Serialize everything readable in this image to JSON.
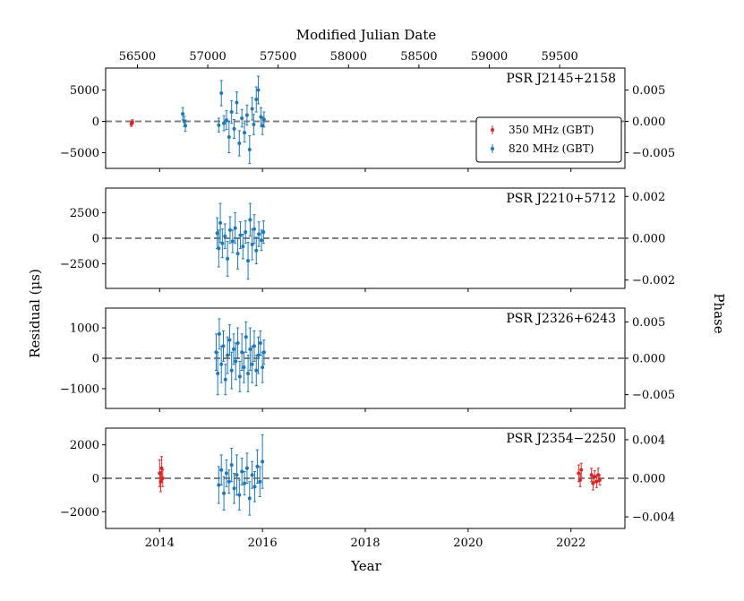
{
  "chart_data": {
    "type": "scatter",
    "top_axis_label": "Modified Julian Date",
    "top_axis_ticks": [
      56500,
      57000,
      57500,
      58000,
      58500,
      59000,
      59500
    ],
    "xlabel": "Year",
    "x_ticks": [
      2014,
      2016,
      2018,
      2020,
      2022
    ],
    "xlim": [
      2012.95,
      2023.05
    ],
    "ylabel_left": "Residual (μs)",
    "ylabel_right": "Phase",
    "reference_line": 0,
    "legend": {
      "position": "right",
      "entries": [
        {
          "label": "350 MHz (GBT)",
          "color": "#d62728"
        },
        {
          "label": "820 MHz (GBT)",
          "color": "#1f77b4"
        }
      ]
    },
    "panels": [
      {
        "name": "PSR J2145+2158",
        "ylim": [
          -7500,
          8500
        ],
        "y_ticks": [
          -5000,
          0,
          5000
        ],
        "y_tick_labels": [
          "−5000",
          "0",
          "5000"
        ],
        "phase_ticks": [
          -0.005,
          0,
          0.005
        ],
        "phase_tick_labels": [
          "−0.005",
          "0.000",
          "0.005"
        ],
        "phase_ylim": [
          -0.0075,
          0.0085
        ],
        "show_legend": true,
        "series": [
          {
            "name": "350 MHz (GBT)",
            "color": "#d62728",
            "points": [
              {
                "x": 2013.45,
                "y": -400,
                "err": 400
              },
              {
                "x": 2013.47,
                "y": -100,
                "err": 350
              }
            ]
          },
          {
            "name": "820 MHz (GBT)",
            "color": "#1f77b4",
            "points": [
              {
                "x": 2014.45,
                "y": 1200,
                "err": 1000
              },
              {
                "x": 2014.48,
                "y": 0,
                "err": 800
              },
              {
                "x": 2014.5,
                "y": -700,
                "err": 900
              },
              {
                "x": 2015.15,
                "y": -600,
                "err": 1100
              },
              {
                "x": 2015.2,
                "y": 4500,
                "err": 2000
              },
              {
                "x": 2015.25,
                "y": -300,
                "err": 1200
              },
              {
                "x": 2015.3,
                "y": 200,
                "err": 1500
              },
              {
                "x": 2015.35,
                "y": -2500,
                "err": 2500
              },
              {
                "x": 2015.4,
                "y": 1500,
                "err": 1800
              },
              {
                "x": 2015.45,
                "y": -1200,
                "err": 1500
              },
              {
                "x": 2015.5,
                "y": 3000,
                "err": 1700
              },
              {
                "x": 2015.55,
                "y": -3500,
                "err": 2000
              },
              {
                "x": 2015.6,
                "y": 500,
                "err": 1400
              },
              {
                "x": 2015.65,
                "y": -1800,
                "err": 1500
              },
              {
                "x": 2015.7,
                "y": 1000,
                "err": 1600
              },
              {
                "x": 2015.75,
                "y": -4500,
                "err": 2200
              },
              {
                "x": 2015.8,
                "y": 2000,
                "err": 1800
              },
              {
                "x": 2015.83,
                "y": -500,
                "err": 1600
              },
              {
                "x": 2015.88,
                "y": 3500,
                "err": 2000
              },
              {
                "x": 2015.92,
                "y": 5000,
                "err": 2200
              },
              {
                "x": 2015.97,
                "y": 700,
                "err": 1500
              },
              {
                "x": 2016.0,
                "y": -700,
                "err": 1400
              },
              {
                "x": 2016.03,
                "y": 300,
                "err": 1200
              }
            ]
          }
        ]
      },
      {
        "name": "PSR J2210+5712",
        "ylim": [
          -4900,
          4900
        ],
        "y_ticks": [
          -2500,
          0,
          2500
        ],
        "y_tick_labels": [
          "−2500",
          "0",
          "2500"
        ],
        "phase_ticks": [
          -0.002,
          0,
          0.002
        ],
        "phase_tick_labels": [
          "−0.002",
          "0.000",
          "0.002"
        ],
        "phase_ylim": [
          -0.0024,
          0.0024
        ],
        "show_legend": false,
        "series": [
          {
            "name": "820 MHz (GBT)",
            "color": "#1f77b4",
            "points": [
              {
                "x": 2015.12,
                "y": 500,
                "err": 1500
              },
              {
                "x": 2015.15,
                "y": -1000,
                "err": 1800
              },
              {
                "x": 2015.18,
                "y": 1500,
                "err": 1900
              },
              {
                "x": 2015.22,
                "y": -500,
                "err": 1400
              },
              {
                "x": 2015.27,
                "y": 200,
                "err": 1200
              },
              {
                "x": 2015.32,
                "y": -2000,
                "err": 1700
              },
              {
                "x": 2015.37,
                "y": 800,
                "err": 1300
              },
              {
                "x": 2015.42,
                "y": -300,
                "err": 1100
              },
              {
                "x": 2015.47,
                "y": 1000,
                "err": 1500
              },
              {
                "x": 2015.52,
                "y": -1500,
                "err": 1500
              },
              {
                "x": 2015.57,
                "y": 300,
                "err": 1300
              },
              {
                "x": 2015.62,
                "y": -800,
                "err": 1200
              },
              {
                "x": 2015.67,
                "y": 600,
                "err": 1100
              },
              {
                "x": 2015.72,
                "y": -2200,
                "err": 1800
              },
              {
                "x": 2015.76,
                "y": 1800,
                "err": 1600
              },
              {
                "x": 2015.8,
                "y": -600,
                "err": 1500
              },
              {
                "x": 2015.84,
                "y": 900,
                "err": 1400
              },
              {
                "x": 2015.88,
                "y": -1200,
                "err": 1300
              },
              {
                "x": 2015.93,
                "y": 400,
                "err": 1200
              },
              {
                "x": 2015.98,
                "y": -200,
                "err": 1000
              },
              {
                "x": 2016.02,
                "y": 600,
                "err": 1100
              }
            ]
          }
        ]
      },
      {
        "name": "PSR J2326+6243",
        "ylim": [
          -1650,
          1650
        ],
        "y_ticks": [
          -1000,
          0,
          1000
        ],
        "y_tick_labels": [
          "−1000",
          "0",
          "1000"
        ],
        "phase_ticks": [
          -0.005,
          0,
          0.005
        ],
        "phase_tick_labels": [
          "−0.005",
          "0.000",
          "0.005"
        ],
        "phase_ylim": [
          -0.0069,
          0.0069
        ],
        "show_legend": false,
        "series": [
          {
            "name": "820 MHz (GBT)",
            "color": "#1f77b4",
            "points": [
              {
                "x": 2015.1,
                "y": 200,
                "err": 600
              },
              {
                "x": 2015.13,
                "y": -500,
                "err": 700
              },
              {
                "x": 2015.16,
                "y": 800,
                "err": 500
              },
              {
                "x": 2015.2,
                "y": -200,
                "err": 600
              },
              {
                "x": 2015.24,
                "y": 400,
                "err": 500
              },
              {
                "x": 2015.28,
                "y": -700,
                "err": 500
              },
              {
                "x": 2015.32,
                "y": 100,
                "err": 600
              },
              {
                "x": 2015.36,
                "y": 600,
                "err": 500
              },
              {
                "x": 2015.4,
                "y": -400,
                "err": 600
              },
              {
                "x": 2015.44,
                "y": 300,
                "err": 500
              },
              {
                "x": 2015.48,
                "y": -100,
                "err": 600
              },
              {
                "x": 2015.52,
                "y": 500,
                "err": 500
              },
              {
                "x": 2015.56,
                "y": -600,
                "err": 500
              },
              {
                "x": 2015.6,
                "y": 200,
                "err": 600
              },
              {
                "x": 2015.64,
                "y": -300,
                "err": 500
              },
              {
                "x": 2015.68,
                "y": 700,
                "err": 500
              },
              {
                "x": 2015.72,
                "y": -500,
                "err": 600
              },
              {
                "x": 2015.76,
                "y": 300,
                "err": 700
              },
              {
                "x": 2015.8,
                "y": -200,
                "err": 600
              },
              {
                "x": 2015.84,
                "y": 400,
                "err": 500
              },
              {
                "x": 2015.88,
                "y": -400,
                "err": 500
              },
              {
                "x": 2015.92,
                "y": 100,
                "err": 600
              },
              {
                "x": 2015.96,
                "y": 500,
                "err": 400
              },
              {
                "x": 2016.0,
                "y": -300,
                "err": 500
              },
              {
                "x": 2016.03,
                "y": 200,
                "err": 400
              }
            ]
          }
        ]
      },
      {
        "name": "PSR J2354−2250",
        "ylim": [
          -3000,
          3000
        ],
        "y_ticks": [
          -2000,
          0,
          2000
        ],
        "y_tick_labels": [
          "−2000",
          "0",
          "2000"
        ],
        "phase_ticks": [
          -0.004,
          0,
          0.004
        ],
        "phase_tick_labels": [
          "−0.004",
          "0.000",
          "0.004"
        ],
        "phase_ylim": [
          -0.0052,
          0.0052
        ],
        "show_legend": false,
        "series": [
          {
            "name": "350 MHz (GBT)",
            "color": "#d62728",
            "points": [
              {
                "x": 2014.0,
                "y": 300,
                "err": 800
              },
              {
                "x": 2014.02,
                "y": -200,
                "err": 600
              },
              {
                "x": 2014.04,
                "y": 600,
                "err": 700
              },
              {
                "x": 2014.06,
                "y": 0,
                "err": 500
              },
              {
                "x": 2022.15,
                "y": 300,
                "err": 500
              },
              {
                "x": 2022.18,
                "y": -100,
                "err": 400
              },
              {
                "x": 2022.2,
                "y": 500,
                "err": 400
              },
              {
                "x": 2022.4,
                "y": 200,
                "err": 400
              },
              {
                "x": 2022.43,
                "y": -300,
                "err": 400
              },
              {
                "x": 2022.46,
                "y": 100,
                "err": 350
              },
              {
                "x": 2022.5,
                "y": -200,
                "err": 350
              },
              {
                "x": 2022.53,
                "y": 200,
                "err": 400
              },
              {
                "x": 2022.56,
                "y": -100,
                "err": 300
              }
            ]
          },
          {
            "name": "820 MHz (GBT)",
            "color": "#1f77b4",
            "points": [
              {
                "x": 2015.15,
                "y": -400,
                "err": 1100
              },
              {
                "x": 2015.2,
                "y": 500,
                "err": 900
              },
              {
                "x": 2015.25,
                "y": -900,
                "err": 1000
              },
              {
                "x": 2015.3,
                "y": 300,
                "err": 800
              },
              {
                "x": 2015.35,
                "y": -200,
                "err": 700
              },
              {
                "x": 2015.4,
                "y": 800,
                "err": 1000
              },
              {
                "x": 2015.45,
                "y": -600,
                "err": 900
              },
              {
                "x": 2015.5,
                "y": 200,
                "err": 1200
              },
              {
                "x": 2015.55,
                "y": -1000,
                "err": 900
              },
              {
                "x": 2015.6,
                "y": 400,
                "err": 800
              },
              {
                "x": 2015.65,
                "y": -300,
                "err": 700
              },
              {
                "x": 2015.7,
                "y": 600,
                "err": 900
              },
              {
                "x": 2015.75,
                "y": -1200,
                "err": 1000
              },
              {
                "x": 2015.8,
                "y": 200,
                "err": 800
              },
              {
                "x": 2015.85,
                "y": -500,
                "err": 900
              },
              {
                "x": 2015.9,
                "y": 700,
                "err": 1000
              },
              {
                "x": 2015.95,
                "y": -200,
                "err": 900
              },
              {
                "x": 2016.0,
                "y": 1000,
                "err": 1600
              }
            ]
          }
        ]
      }
    ]
  }
}
